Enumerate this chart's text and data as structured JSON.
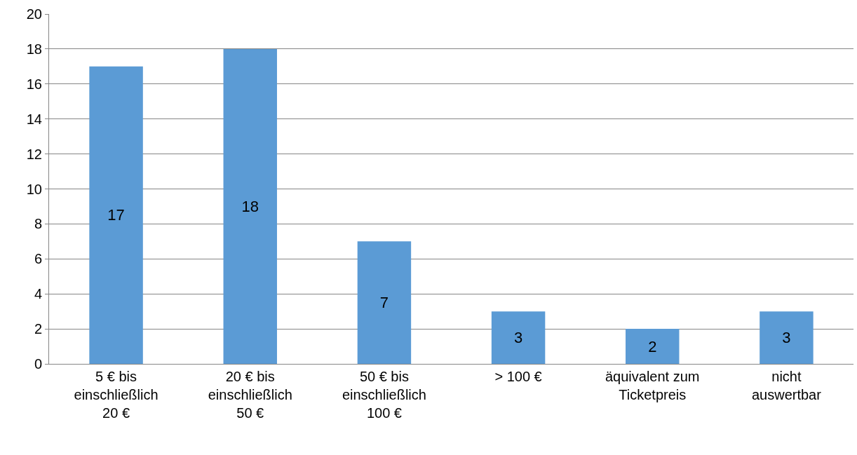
{
  "chart_data": {
    "type": "bar",
    "categories": [
      "5 € bis einschließlich 20 €",
      "20 € bis einschließlich 50 €",
      "50 € bis einschließlich 100 €",
      "> 100 €",
      "äquivalent zum Ticketpreis",
      "nicht auswertbar"
    ],
    "values": [
      17,
      18,
      7,
      3,
      2,
      3
    ],
    "color": "#5b9bd5",
    "ylim": [
      0,
      20
    ],
    "yticks": [
      0,
      2,
      4,
      6,
      8,
      10,
      12,
      14,
      16,
      18,
      20
    ],
    "grid": "y",
    "data_labels": true,
    "legend": false
  }
}
